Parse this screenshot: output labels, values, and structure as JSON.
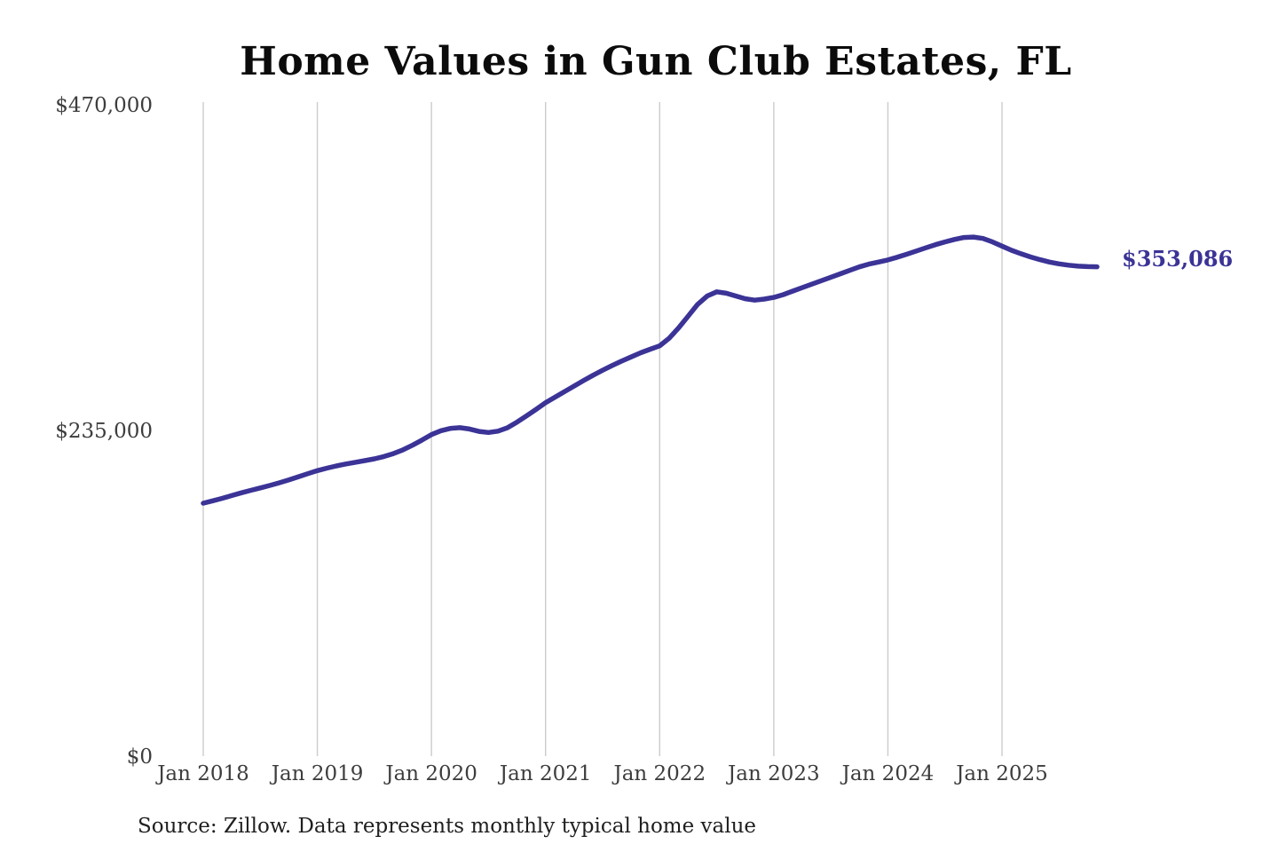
{
  "page": {
    "title": "Home Values in Gun Club Estates, FL",
    "end_label": "$353,086",
    "source_note": "Source: Zillow. Data represents monthly typical home value"
  },
  "colors": {
    "line": "#3b3396",
    "grid": "#cccccc",
    "tick_text": "#3d3d3d",
    "title_text": "#0b0b0b"
  },
  "chart_data": {
    "type": "line",
    "title": "Home Values in Gun Club Estates, FL",
    "series_name": "Monthly typical home value",
    "xlabel": "",
    "ylabel": "",
    "ylim": [
      0,
      470000
    ],
    "grid": "vertical-only",
    "legend": "none",
    "end_value": 353086,
    "end_value_label": "$353,086",
    "x_tick_labels": [
      "Jan 2018",
      "Jan 2019",
      "Jan 2020",
      "Jan 2021",
      "Jan 2022",
      "Jan 2023",
      "Jan 2024",
      "Jan 2025"
    ],
    "y_ticks": [
      {
        "value": 0,
        "label": "$0"
      },
      {
        "value": 235000,
        "label": "$235,000"
      },
      {
        "value": 470000,
        "label": "$470,000"
      }
    ],
    "months": [
      "2018-01",
      "2018-02",
      "2018-03",
      "2018-04",
      "2018-05",
      "2018-06",
      "2018-07",
      "2018-08",
      "2018-09",
      "2018-10",
      "2018-11",
      "2018-12",
      "2019-01",
      "2019-02",
      "2019-03",
      "2019-04",
      "2019-05",
      "2019-06",
      "2019-07",
      "2019-08",
      "2019-09",
      "2019-10",
      "2019-11",
      "2019-12",
      "2020-01",
      "2020-02",
      "2020-03",
      "2020-04",
      "2020-05",
      "2020-06",
      "2020-07",
      "2020-08",
      "2020-09",
      "2020-10",
      "2020-11",
      "2020-12",
      "2021-01",
      "2021-02",
      "2021-03",
      "2021-04",
      "2021-05",
      "2021-06",
      "2021-07",
      "2021-08",
      "2021-09",
      "2021-10",
      "2021-11",
      "2021-12",
      "2022-01",
      "2022-02",
      "2022-03",
      "2022-04",
      "2022-05",
      "2022-06",
      "2022-07",
      "2022-08",
      "2022-09",
      "2022-10",
      "2022-11",
      "2022-12",
      "2023-01",
      "2023-02",
      "2023-03",
      "2023-04",
      "2023-05",
      "2023-06",
      "2023-07",
      "2023-08",
      "2023-09",
      "2023-10",
      "2023-11",
      "2023-12",
      "2024-01",
      "2024-02",
      "2024-03",
      "2024-04",
      "2024-05",
      "2024-06",
      "2024-07",
      "2024-08",
      "2024-09",
      "2024-10",
      "2024-11",
      "2024-12",
      "2025-01",
      "2025-02",
      "2025-03",
      "2025-04",
      "2025-05",
      "2025-06",
      "2025-07",
      "2025-08",
      "2025-09",
      "2025-10",
      "2025-11"
    ],
    "values": [
      182500,
      184200,
      186000,
      188000,
      190000,
      191800,
      193500,
      195300,
      197200,
      199300,
      201500,
      203800,
      206000,
      207800,
      209400,
      210800,
      212000,
      213200,
      214500,
      216200,
      218300,
      221000,
      224300,
      228000,
      232000,
      234800,
      236500,
      237000,
      236000,
      234300,
      233500,
      234500,
      237000,
      241000,
      245500,
      250200,
      255000,
      259000,
      263000,
      267000,
      271000,
      274800,
      278400,
      281800,
      285000,
      288000,
      291000,
      293600,
      296000,
      301500,
      309000,
      317500,
      326000,
      332000,
      335000,
      334000,
      332000,
      330000,
      329000,
      329800,
      331000,
      333000,
      335500,
      338000,
      340500,
      343000,
      345500,
      348000,
      350500,
      353000,
      355000,
      356500,
      358000,
      360000,
      362200,
      364500,
      366800,
      369000,
      371000,
      372800,
      374200,
      374500,
      373500,
      371000,
      368000,
      365000,
      362500,
      360200,
      358200,
      356500,
      355200,
      354200,
      353500,
      353200,
      353086
    ]
  }
}
